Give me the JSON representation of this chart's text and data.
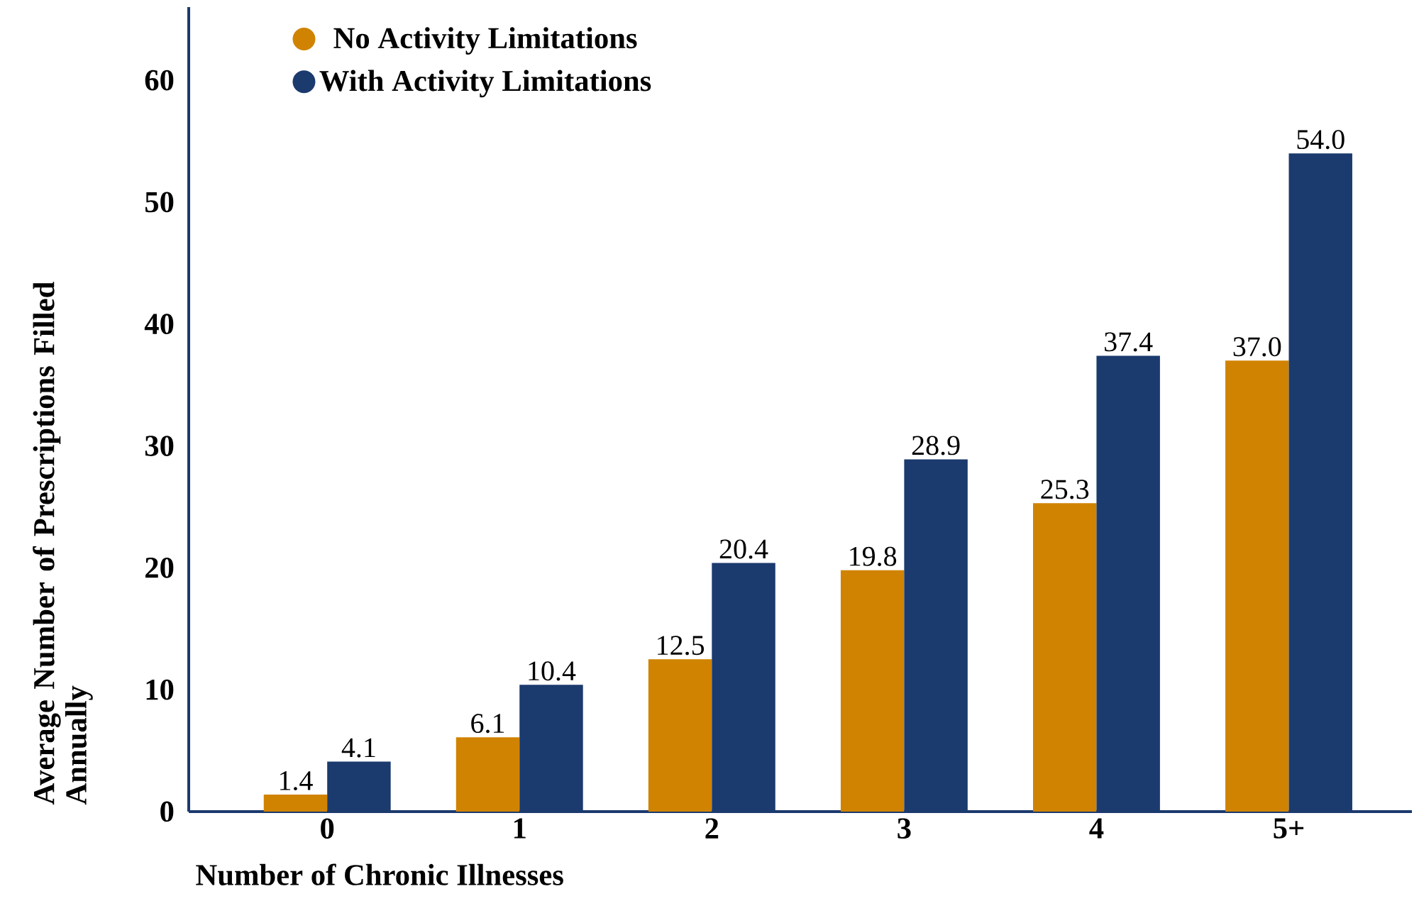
{
  "chart_data": {
    "type": "bar",
    "xlabel": "Number of Chronic Illnesses",
    "ylabel": "Average Number of Prescriptions Filled Annually",
    "categories": [
      "0",
      "1",
      "2",
      "3",
      "4",
      "5+"
    ],
    "series": [
      {
        "name": "No Activity Limitations",
        "color": "#d08300",
        "values": [
          1.4,
          6.1,
          12.5,
          19.8,
          25.3,
          37.0
        ],
        "value_labels": [
          "1.4",
          "6.1",
          "12.5",
          "19.8",
          "25.3",
          "37.0"
        ]
      },
      {
        "name": "With Activity Limitations",
        "color": "#1b3a6e",
        "values": [
          4.1,
          10.4,
          20.4,
          28.9,
          37.4,
          54.0
        ],
        "value_labels": [
          "4.1",
          "10.4",
          "20.4",
          "28.9",
          "37.4",
          "54.0"
        ]
      }
    ],
    "ylim": [
      0,
      66
    ],
    "yticks": [
      0,
      10,
      20,
      30,
      40,
      50,
      60
    ],
    "grid": false,
    "legend": "top left"
  }
}
